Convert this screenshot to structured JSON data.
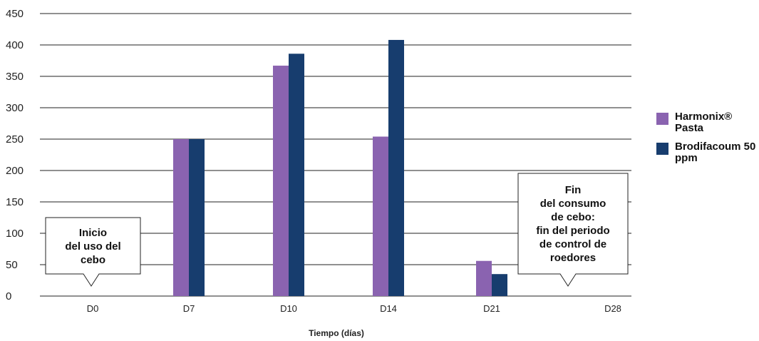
{
  "chart_data": {
    "type": "bar",
    "categories": [
      "D0",
      "D7",
      "D10",
      "D14",
      "D21",
      "D28"
    ],
    "series": [
      {
        "name": "Harmonix® Pasta",
        "color": "#8a63b0",
        "values": [
          0,
          250,
          367,
          254,
          56,
          0
        ]
      },
      {
        "name": "Brodifacoum 50 ppm",
        "color": "#173d6e",
        "values": [
          0,
          250,
          386,
          408,
          35,
          0
        ]
      }
    ],
    "xlabel": "Tiempo (días)",
    "ylabel": "",
    "ylim": [
      0,
      450
    ],
    "yticks": [
      "0",
      "50",
      "100",
      "150",
      "200",
      "250",
      "300",
      "350",
      "400",
      "450"
    ],
    "grid": true,
    "legend": "right",
    "annotations": [
      {
        "category": "D0",
        "lines": [
          "Inicio",
          "del uso del",
          "cebo"
        ]
      },
      {
        "category": "D28",
        "lines": [
          "Fin",
          "del consumo",
          "de cebo:",
          "fin del periodo",
          "de control de",
          "roedores"
        ]
      }
    ]
  }
}
